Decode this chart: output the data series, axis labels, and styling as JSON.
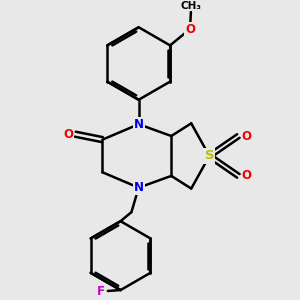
{
  "background_color": "#e8e8e8",
  "figsize": [
    3.0,
    3.0
  ],
  "dpi": 100,
  "bond_color": "#000000",
  "bond_width": 1.8,
  "atom_colors": {
    "N": "#0000ee",
    "O": "#ee0000",
    "S": "#bbbb00",
    "F": "#cc00cc",
    "C": "#000000"
  },
  "font_size_atom": 8.5,
  "font_size_me": 7.5
}
